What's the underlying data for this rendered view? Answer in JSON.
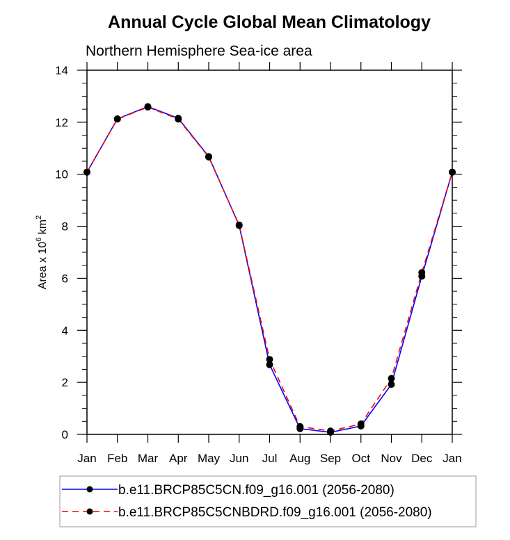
{
  "chart_data": {
    "type": "line",
    "title": "Annual Cycle Global Mean Climatology",
    "subtitle": "Northern Hemisphere Sea-ice area",
    "xlabel": "",
    "ylabel": "Area x 10^6 km^2",
    "ylabel_parts": {
      "base": "Area x 10",
      "exp1": "6",
      "unit": " km",
      "exp2": "2"
    },
    "ylim": [
      0,
      14
    ],
    "yticks": [
      0,
      2,
      4,
      6,
      8,
      10,
      12,
      14
    ],
    "y_minor_step": 0.5,
    "categories": [
      "Jan",
      "Feb",
      "Mar",
      "Apr",
      "May",
      "Jun",
      "Jul",
      "Aug",
      "Sep",
      "Oct",
      "Nov",
      "Dec",
      "Jan"
    ],
    "grid": false,
    "legend_position": "bottom",
    "series": [
      {
        "name": "b.e11.BRCP85C5CN.f09_g16.001 (2056-2080)",
        "color": "#0000ff",
        "dash": "solid",
        "marker": "dot",
        "values": [
          10.08,
          12.13,
          12.6,
          12.15,
          10.68,
          8.03,
          2.68,
          0.22,
          0.08,
          0.32,
          1.92,
          6.08,
          10.08
        ]
      },
      {
        "name": "b.e11.BRCP85C5CNBDRD.f09_g16.001 (2056-2080)",
        "color": "#ff0000",
        "dash": "dashed",
        "marker": "dot",
        "values": [
          10.08,
          12.12,
          12.58,
          12.12,
          10.66,
          8.05,
          2.88,
          0.3,
          0.13,
          0.4,
          2.15,
          6.22,
          10.08
        ]
      }
    ]
  }
}
